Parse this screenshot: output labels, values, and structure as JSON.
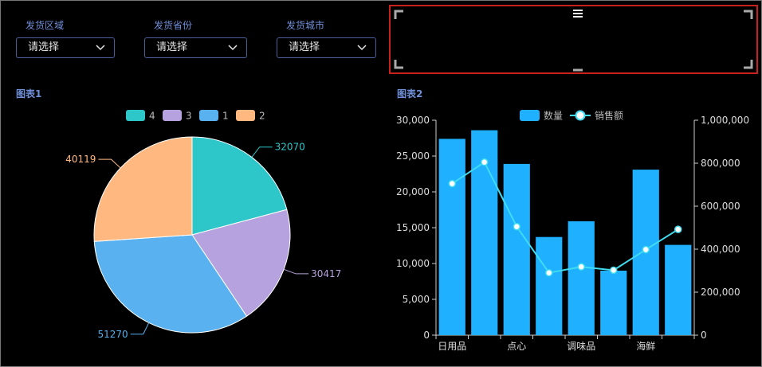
{
  "filters": [
    {
      "label": "发货区域",
      "value": "请选择"
    },
    {
      "label": "发货省份",
      "value": "请选择"
    },
    {
      "label": "发货城市",
      "value": "请选择"
    }
  ],
  "chart1": {
    "title": "图表1"
  },
  "chart2": {
    "title": "图表2"
  },
  "colors": {
    "pie": [
      "#2ec7c9",
      "#b6a2de",
      "#5ab1ef",
      "#ffb980"
    ],
    "bar": "#1fb0ff",
    "line": "#3fdcf0",
    "filter_label": "#6f8fd8",
    "frame_border": "#c8201c"
  },
  "chart_data": [
    {
      "type": "pie",
      "legend": [
        "4",
        "3",
        "1",
        "2"
      ],
      "legend_position": "top-center",
      "slices": [
        {
          "name": "4",
          "value": 32070
        },
        {
          "name": "3",
          "value": 30417
        },
        {
          "name": "1",
          "value": 51270
        },
        {
          "name": "2",
          "value": 40119
        }
      ]
    },
    {
      "type": "bar",
      "categories": [
        "日用品",
        "",
        "点心",
        "",
        "调味品",
        "",
        "海鲜",
        ""
      ],
      "series": [
        {
          "name": "数量",
          "type": "bar",
          "axis": "left",
          "values": [
            27400,
            28600,
            23900,
            13700,
            15900,
            9000,
            23100,
            12600
          ]
        },
        {
          "name": "销售额",
          "type": "line",
          "axis": "right",
          "values": [
            705000,
            805000,
            505000,
            290000,
            318000,
            302000,
            398000,
            492000
          ]
        }
      ],
      "ylim_left": [
        0,
        30000
      ],
      "yticks_left": [
        "0",
        "5,000",
        "10,000",
        "15,000",
        "20,000",
        "25,000",
        "30,000"
      ],
      "ylim_right": [
        0,
        1000000
      ],
      "yticks_right": [
        "0",
        "200,000",
        "400,000",
        "600,000",
        "800,000",
        "1,000,000"
      ],
      "legend_position": "top-center",
      "grid": false
    }
  ]
}
